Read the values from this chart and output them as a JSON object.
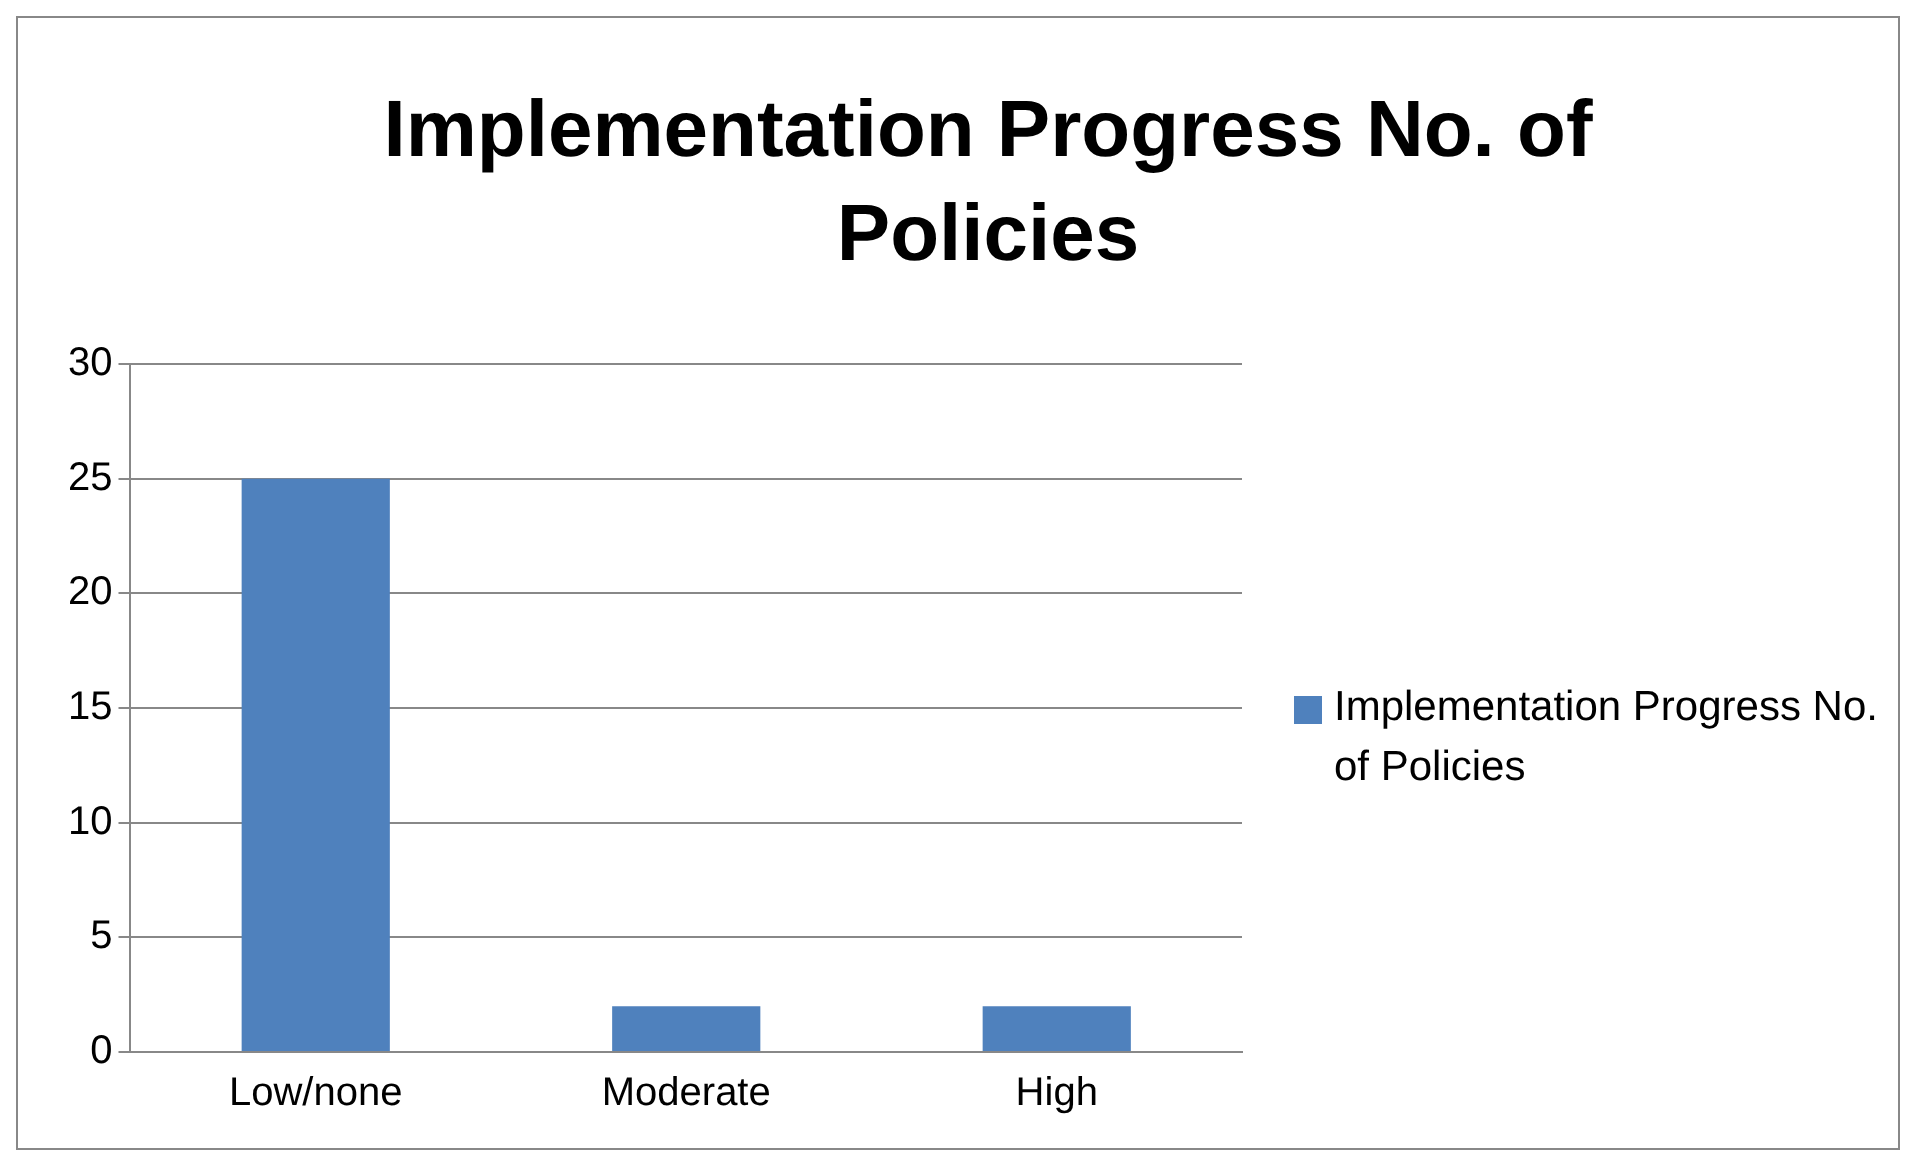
{
  "chart_data": {
    "type": "bar",
    "title": "Implementation Progress No. of Policies",
    "categories": [
      "Low/none",
      "Moderate",
      "High"
    ],
    "series": [
      {
        "name": "Implementation Progress No. of Policies",
        "color": "#4f81bd",
        "values": [
          25,
          2,
          2
        ]
      }
    ],
    "ylim": [
      0,
      30
    ],
    "yticks": [
      0,
      5,
      10,
      15,
      20,
      25,
      30
    ],
    "grid": "y",
    "legend": "right"
  }
}
